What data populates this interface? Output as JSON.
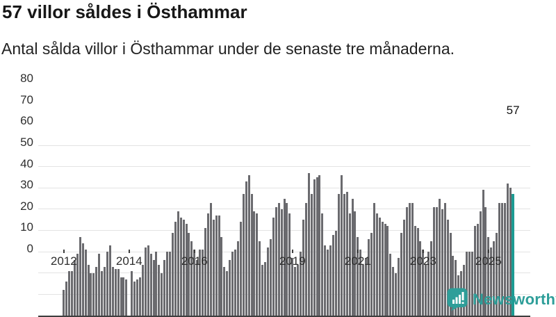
{
  "header": {
    "title": "57 villor såldes i Östhammar",
    "subtitle": "Antal sålda villor i Östhammar under de senaste tre månaderna."
  },
  "chart_data": {
    "type": "bar",
    "title": "57 villor såldes i Östhammar",
    "subtitle": "Antal sålda villor i Östhammar under de senaste tre månaderna.",
    "x_interval": "monthly",
    "x_tick_labels": [
      "2012",
      "2014",
      "2016",
      "2019",
      "2021",
      "2023",
      "2025"
    ],
    "x_tick_indices": [
      0,
      24,
      48,
      84,
      108,
      132,
      156
    ],
    "yticks": [
      0,
      10,
      20,
      30,
      40,
      50,
      60,
      70,
      80
    ],
    "ylim": [
      0,
      80
    ],
    "grid": "horizontal",
    "legend": "none",
    "bar_color": "#6a6a6e",
    "highlight_color": "#1d9b93",
    "highlight_index": 165,
    "annotation": {
      "text": "57",
      "index": 165,
      "value": 57
    },
    "values": [
      12,
      16,
      21,
      21,
      26,
      29,
      37,
      34,
      31,
      24,
      20,
      20,
      23,
      29,
      21,
      23,
      30,
      33,
      23,
      22,
      22,
      18,
      18,
      17,
      0,
      21,
      16,
      17,
      18,
      24,
      32,
      33,
      29,
      26,
      30,
      24,
      20,
      26,
      30,
      30,
      39,
      44,
      49,
      46,
      45,
      43,
      39,
      35,
      31,
      26,
      31,
      31,
      41,
      48,
      53,
      45,
      47,
      47,
      37,
      23,
      21,
      26,
      30,
      31,
      35,
      44,
      57,
      63,
      66,
      57,
      49,
      48,
      35,
      24,
      25,
      32,
      36,
      46,
      51,
      53,
      50,
      55,
      53,
      48,
      27,
      23,
      24,
      30,
      45,
      53,
      67,
      57,
      64,
      65,
      66,
      48,
      33,
      31,
      33,
      38,
      40,
      57,
      66,
      57,
      58,
      48,
      55,
      49,
      37,
      31,
      24,
      27,
      36,
      39,
      53,
      48,
      46,
      44,
      43,
      42,
      29,
      23,
      20,
      27,
      39,
      45,
      51,
      53,
      53,
      42,
      41,
      35,
      31,
      24,
      30,
      35,
      51,
      51,
      55,
      50,
      53,
      45,
      39,
      28,
      26,
      19,
      21,
      24,
      30,
      30,
      30,
      42,
      43,
      49,
      59,
      51,
      37,
      32,
      35,
      39,
      53,
      53,
      53,
      62,
      60,
      57
    ]
  },
  "footer": {
    "brand": "Newsworthy",
    "logo_color": "#2e9e99"
  }
}
